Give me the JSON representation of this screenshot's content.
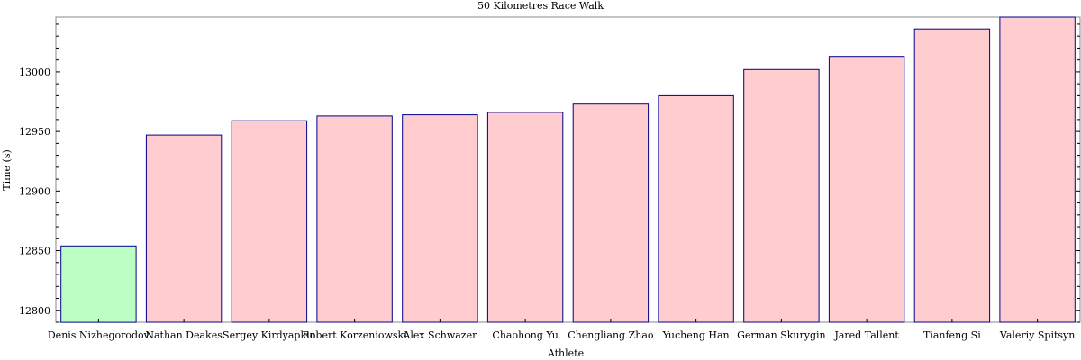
{
  "chart_data": {
    "type": "bar",
    "title": "50 Kilometres Race Walk",
    "xlabel": "Athlete",
    "ylabel": "Time (s)",
    "categories": [
      "Denis Nizhegorodov",
      "Nathan Deakes",
      "Sergey Kirdyapkin",
      "Robert Korzeniowski",
      "Alex Schwazer",
      "Chaohong Yu",
      "Chengliang Zhao",
      "Yucheng Han",
      "German Skurygin",
      "Jared Tallent",
      "Tianfeng Si",
      "Valeriy Spitsyn"
    ],
    "values": [
      12854,
      12947,
      12959,
      12963,
      12964,
      12966,
      12973,
      12980,
      13002,
      13013,
      13036,
      13046
    ],
    "highlight_index": 0,
    "highlight_color": "#bbffc4",
    "bar_color": "#ffcccf",
    "edge_color": "#00008b",
    "ylim": [
      12790,
      13046
    ],
    "yticks": [
      12800,
      12850,
      12900,
      12950,
      13000
    ],
    "grid": false
  }
}
